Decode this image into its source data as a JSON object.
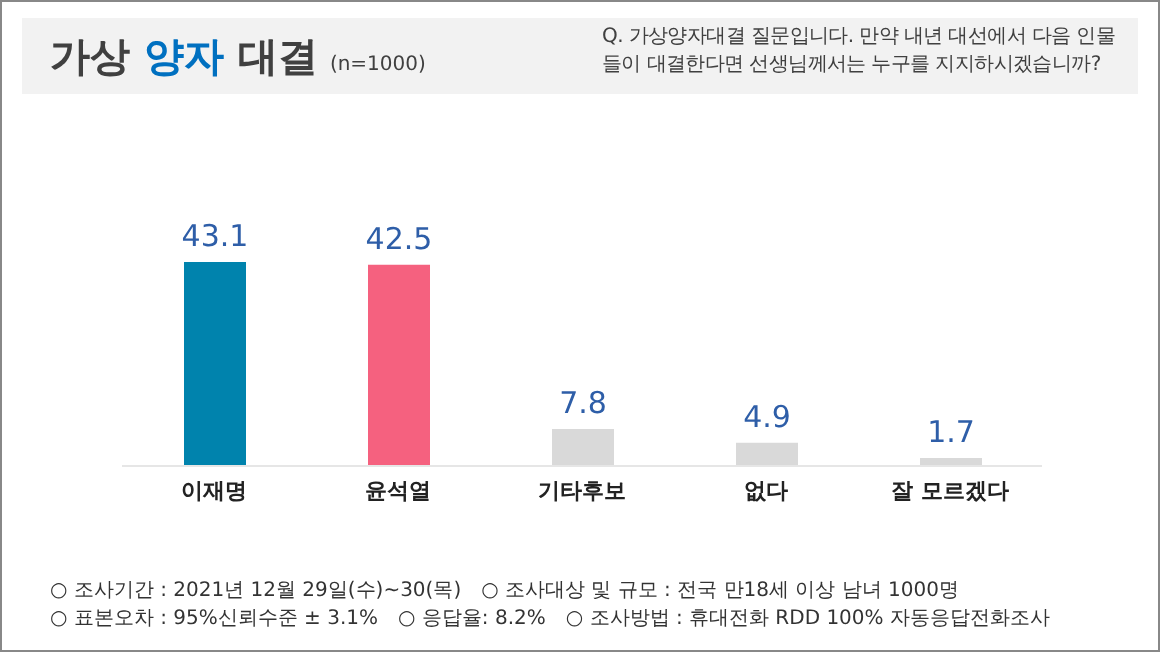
{
  "chart_data": {
    "type": "bar",
    "title": "가상 양자 대결",
    "subtitle": "(n=1000)",
    "categories": [
      "이재명",
      "윤석열",
      "기타후보",
      "없다",
      "잘 모르겠다"
    ],
    "values": [
      43.1,
      42.5,
      7.8,
      4.9,
      1.7
    ],
    "colors": [
      "#0083ad",
      "#f5617f",
      "#d9d9d9",
      "#d9d9d9",
      "#d9d9d9"
    ],
    "tick_labels": "x",
    "data_labels": true,
    "legend": false,
    "annotations": [
      "Q. 가상양자대결 질문입니다. 만약 내년 대선에서 다음 인물들이 대결한다면 선생님께서는 누구를 지지하시겠습니까?",
      "○ 조사기간 : 2021년 12월 29일(수)~30(목)",
      "○ 조사대상 및 규모 : 전국 만18세 이상 남녀 1000명",
      "○ 표본오차 : 95%신뢰수준 ± 3.1%",
      "○ 응답율: 8.2%",
      "○ 조사방법 : 휴대전화 RDD 100% 자동응답전화조사"
    ]
  }
}
